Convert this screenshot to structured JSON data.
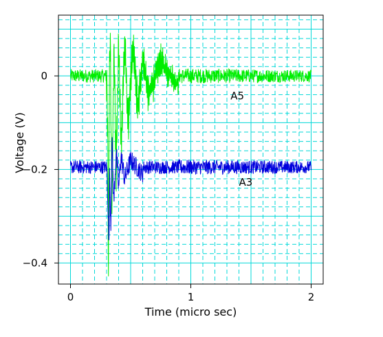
{
  "chart_data": {
    "type": "line",
    "xlabel": "Time (micro sec)",
    "ylabel": "Voltage (V)",
    "xlim": [
      -0.1,
      2.1
    ],
    "ylim": [
      -0.445,
      0.13
    ],
    "x_ticks": [
      0,
      1,
      2
    ],
    "x_tick_labels": [
      "0",
      "1",
      "2"
    ],
    "y_ticks": [
      0,
      -0.2,
      -0.4
    ],
    "y_tick_labels": [
      "0",
      "−0.2",
      "−0.4"
    ],
    "grid": true,
    "grid_style": "dashed minor, solid major",
    "colors": {
      "grid": "#00d8d8",
      "axes": "#000000",
      "background": "#ffffff"
    },
    "series": [
      {
        "name": "A5",
        "color": "#00ee00",
        "baseline": 0.0,
        "noise_amplitude": 0.012,
        "samples": 900,
        "x_range": [
          0.0,
          2.0
        ],
        "keypoints": [
          [
            0.3,
            0.0
          ],
          [
            0.31,
            -0.12
          ],
          [
            0.315,
            -0.43
          ],
          [
            0.322,
            -0.05
          ],
          [
            0.33,
            0.09
          ],
          [
            0.345,
            -0.3
          ],
          [
            0.36,
            0.08
          ],
          [
            0.38,
            -0.2
          ],
          [
            0.4,
            0.07
          ],
          [
            0.42,
            -0.15
          ],
          [
            0.45,
            0.07
          ],
          [
            0.48,
            -0.1
          ],
          [
            0.52,
            0.06
          ],
          [
            0.56,
            -0.07
          ],
          [
            0.6,
            0.04
          ],
          [
            0.65,
            -0.04
          ],
          [
            0.75,
            0.03
          ],
          [
            0.9,
            -0.02
          ]
        ],
        "label_at": {
          "x": 1.33,
          "y": -0.05
        }
      },
      {
        "name": "A3",
        "color": "#0000dd",
        "baseline": -0.195,
        "noise_amplitude": 0.012,
        "samples": 900,
        "x_range": [
          0.0,
          2.0
        ],
        "keypoints": [
          [
            0.3,
            -0.19
          ],
          [
            0.31,
            -0.25
          ],
          [
            0.32,
            -0.37
          ],
          [
            0.325,
            -0.2
          ],
          [
            0.335,
            -0.32
          ],
          [
            0.345,
            -0.14
          ],
          [
            0.36,
            -0.27
          ],
          [
            0.38,
            -0.16
          ],
          [
            0.4,
            -0.24
          ],
          [
            0.42,
            -0.17
          ],
          [
            0.45,
            -0.22
          ],
          [
            0.5,
            -0.18
          ],
          [
            0.6,
            -0.21
          ]
        ],
        "label_at": {
          "x": 1.4,
          "y": -0.235
        }
      }
    ]
  }
}
